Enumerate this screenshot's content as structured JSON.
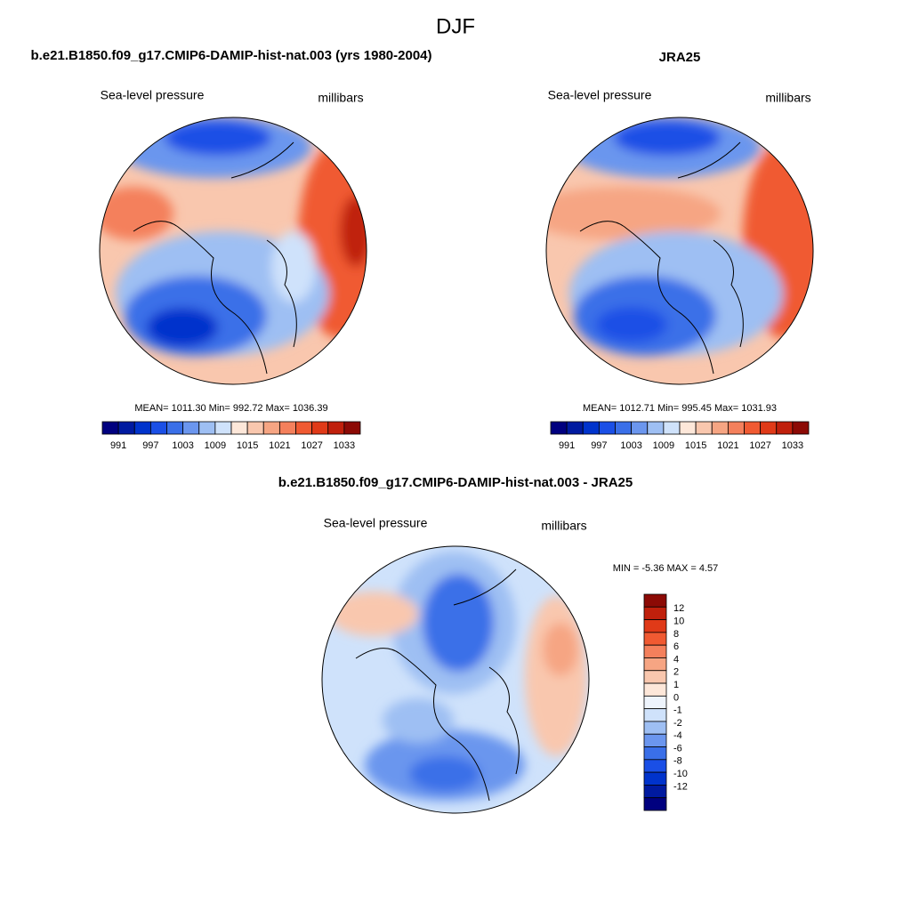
{
  "title": "DJF",
  "panels": [
    {
      "title": "b.e21.B1850.f09_g17.CMIP6-DAMIP-hist-nat.003 (yrs 1980-2004)",
      "left_label": "Sea-level pressure",
      "right_label": "millibars",
      "stats": "MEAN= 1011.30  Min= 992.72  Max= 1036.39",
      "colorbar": {
        "levels": [
          991,
          997,
          1003,
          1009,
          1015,
          1021,
          1027,
          1033
        ],
        "colors": [
          "#00007f",
          "#001aa0",
          "#0033cc",
          "#1a4fe6",
          "#3a6fe8",
          "#6b96ee",
          "#9ebff3",
          "#cfe2fb",
          "#fde7d9",
          "#f9c7ae",
          "#f6a583",
          "#f4805c",
          "#f05a32",
          "#e03a18",
          "#c0200c",
          "#8c0a05"
        ]
      }
    },
    {
      "title": "JRA25",
      "left_label": "Sea-level pressure",
      "right_label": "millibars",
      "stats": "MEAN= 1012.71  Min= 995.45  Max= 1031.93",
      "colorbar": {
        "levels": [
          991,
          997,
          1003,
          1009,
          1015,
          1021,
          1027,
          1033
        ],
        "colors": [
          "#00007f",
          "#001aa0",
          "#0033cc",
          "#1a4fe6",
          "#3a6fe8",
          "#6b96ee",
          "#9ebff3",
          "#cfe2fb",
          "#fde7d9",
          "#f9c7ae",
          "#f6a583",
          "#f4805c",
          "#f05a32",
          "#e03a18",
          "#c0200c",
          "#8c0a05"
        ]
      }
    },
    {
      "title": "b.e21.B1850.f09_g17.CMIP6-DAMIP-hist-nat.003 - JRA25",
      "left_label": "Sea-level pressure",
      "right_label": "millibars",
      "stats": "MIN =  -5.36 MAX =   4.57",
      "colorbar": {
        "levels": [
          12,
          10,
          8,
          6,
          4,
          2,
          1,
          0,
          -1,
          -2,
          -4,
          -6,
          -8,
          -10,
          -12
        ],
        "colors": [
          "#8c0a05",
          "#c0200c",
          "#e03a18",
          "#f05a32",
          "#f4805c",
          "#f6a583",
          "#f9c7ae",
          "#fde7d9",
          "#eef4fc",
          "#cfe2fb",
          "#9ebff3",
          "#6b96ee",
          "#3a6fe8",
          "#1a4fe6",
          "#0033cc",
          "#001aa0",
          "#00007f"
        ]
      }
    }
  ]
}
